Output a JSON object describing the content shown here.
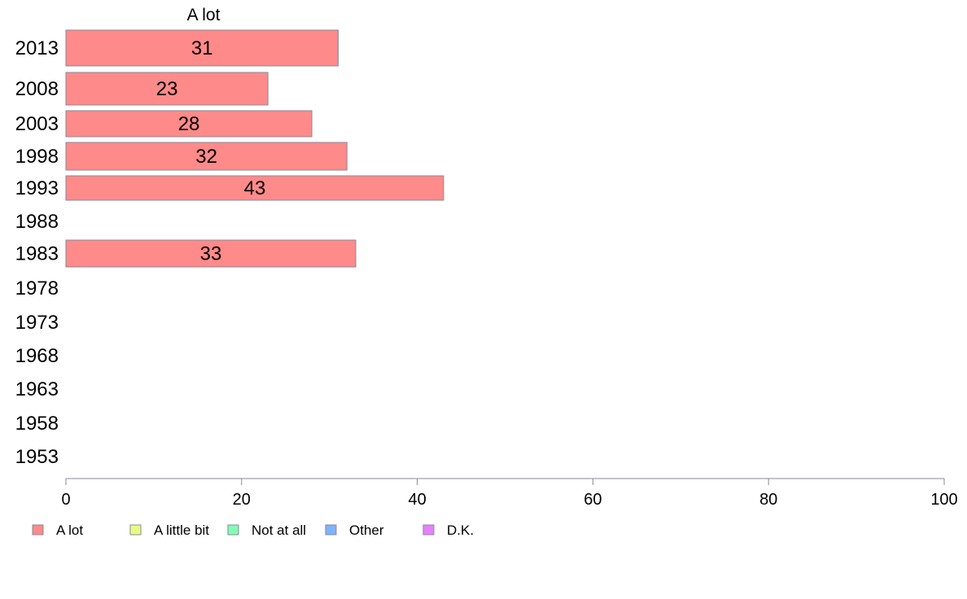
{
  "chart_data": {
    "type": "bar",
    "orientation": "horizontal",
    "title": "A lot",
    "categories": [
      "2013",
      "2008",
      "2003",
      "1998",
      "1993",
      "1988",
      "1983",
      "1978",
      "1973",
      "1968",
      "1963",
      "1958",
      "1953"
    ],
    "series": [
      {
        "name": "A lot",
        "color": "#FF8A8A",
        "values": [
          31,
          23,
          28,
          32,
          43,
          null,
          33,
          null,
          null,
          null,
          null,
          null,
          null
        ]
      }
    ],
    "xlim": [
      0,
      100
    ],
    "xticks": [
      "0",
      "20",
      "40",
      "60",
      "80",
      "100"
    ],
    "grid": false,
    "legend": {
      "placement": "bottom",
      "items": [
        {
          "label": "A lot",
          "color": "#FF8A8A"
        },
        {
          "label": "A little bit",
          "color": "#E6FF80"
        },
        {
          "label": "Not at all",
          "color": "#80FFB3"
        },
        {
          "label": "Other",
          "color": "#80B3FF"
        },
        {
          "label": "D.K.",
          "color": "#E680FF"
        }
      ]
    }
  }
}
